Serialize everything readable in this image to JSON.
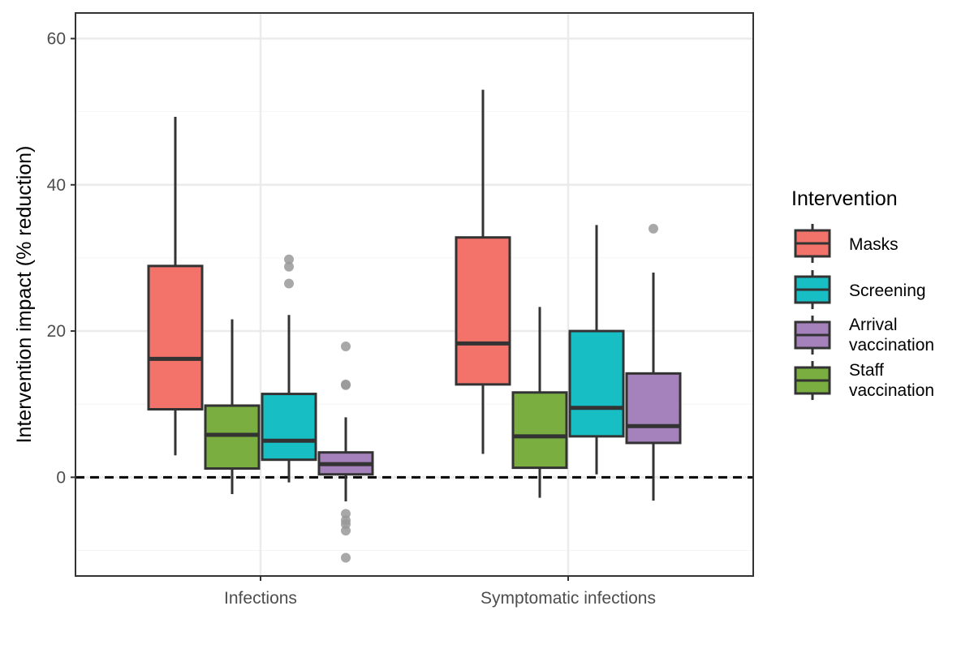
{
  "chart_data": {
    "type": "boxplot",
    "ylabel": "Intervention impact (% reduction)",
    "xlabel": "",
    "ylim": [
      -13.5,
      63.5
    ],
    "yticks": [
      0,
      20,
      40,
      60
    ],
    "reference_line": {
      "y": 0,
      "style": "dashed"
    },
    "categories": [
      "Infections",
      "Symptomatic infections"
    ],
    "legend": {
      "title": "Intervention",
      "position": "right",
      "entries": [
        "Masks",
        "Screening",
        "Arrival vaccination",
        "Staff vaccination"
      ],
      "display_lines": [
        [
          "Masks"
        ],
        [
          "Screening"
        ],
        [
          "Arrival",
          "vaccination"
        ],
        [
          "Staff",
          "vaccination"
        ]
      ]
    },
    "series": [
      {
        "name": "Masks",
        "color": "#F8766D",
        "boxes": [
          {
            "category": "Infections",
            "whisker_low": 3,
            "q1": 9.3,
            "median": 16.2,
            "q3": 28.9,
            "whisker_high": 49.3,
            "outliers": []
          },
          {
            "category": "Symptomatic infections",
            "whisker_low": 3.2,
            "q1": 12.7,
            "median": 18.3,
            "q3": 32.8,
            "whisker_high": 53,
            "outliers": []
          }
        ]
      },
      {
        "name": "Staff vaccination",
        "color": "#7CAE00",
        "boxes": [
          {
            "category": "Infections",
            "whisker_low": -2.3,
            "q1": 1.2,
            "median": 5.8,
            "q3": 9.8,
            "whisker_high": 21.6,
            "outliers": []
          },
          {
            "category": "Symptomatic infections",
            "whisker_low": -2.8,
            "q1": 1.3,
            "median": 5.6,
            "q3": 11.6,
            "whisker_high": 23.3,
            "outliers": []
          }
        ]
      },
      {
        "name": "Screening",
        "color": "#00BFC4",
        "boxes": [
          {
            "category": "Infections",
            "whisker_low": -0.7,
            "q1": 2.4,
            "median": 5,
            "q3": 11.4,
            "whisker_high": 22.2,
            "outliers": [
              26.5,
              28.8,
              29.8
            ]
          },
          {
            "category": "Symptomatic infections",
            "whisker_low": 0.4,
            "q1": 5.6,
            "median": 9.5,
            "q3": 20,
            "whisker_high": 34.5,
            "outliers": []
          }
        ]
      },
      {
        "name": "Arrival vaccination",
        "color": "#C77CFF",
        "boxes": [
          {
            "category": "Infections",
            "whisker_low": -3.3,
            "q1": 0.4,
            "median": 1.8,
            "q3": 3.4,
            "whisker_high": 8.2,
            "outliers": [
              17.9,
              12.7,
              12.6,
              -5,
              -5.9,
              -6.4,
              -7.3,
              -11
            ]
          },
          {
            "category": "Symptomatic infections",
            "whisker_low": -3.2,
            "q1": 4.7,
            "median": 7,
            "q3": 14.2,
            "whisker_high": 28,
            "outliers": [
              34
            ]
          }
        ]
      }
    ],
    "grid": true,
    "colors": {
      "Masks": "#F3736B",
      "Staff vaccination": "#7AAE40",
      "Screening": "#17BEC4",
      "Arrival vaccination": "#A582BC",
      "outline": "#333333",
      "outlier": "#999999",
      "grid_major": "#EBEBEB",
      "grid_minor": "#F4F4F4"
    }
  }
}
